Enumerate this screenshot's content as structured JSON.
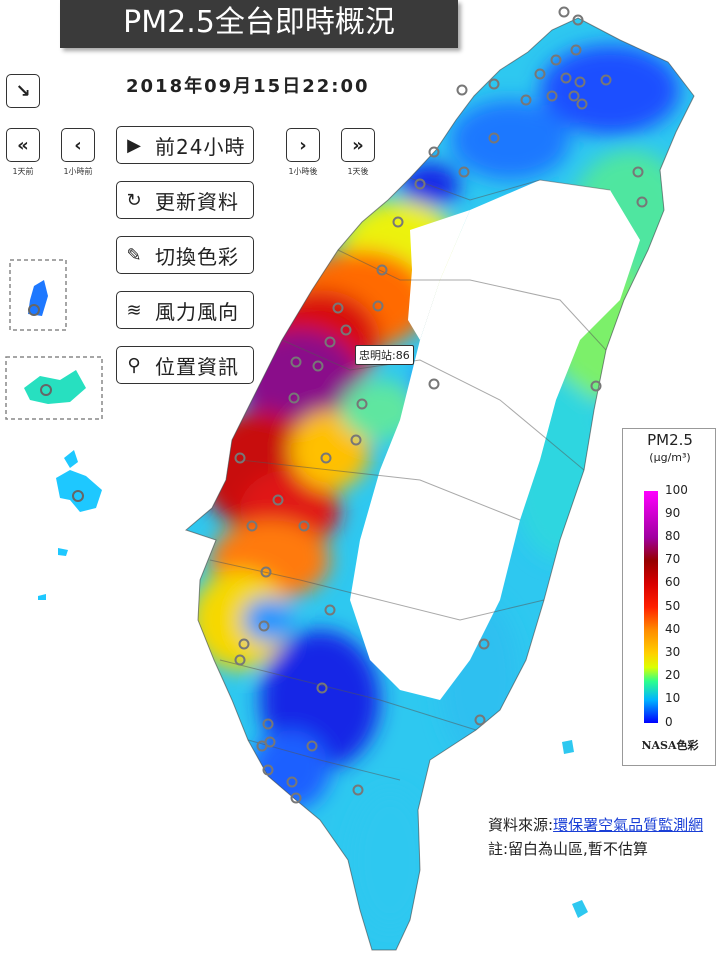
{
  "title": "PM2.5全台即時概況",
  "datetime": "2018年09月15日22:00",
  "controls": {
    "collapse_icon": "arrow-down-right-icon",
    "step_buttons": [
      {
        "icon": "double-chevron-left-icon",
        "glyph": "«",
        "caption": "1天前"
      },
      {
        "icon": "chevron-left-icon",
        "glyph": "‹",
        "caption": "1小時前"
      },
      {
        "icon": "chevron-right-icon",
        "glyph": "›",
        "caption": "1小時後"
      },
      {
        "icon": "double-chevron-right-icon",
        "glyph": "»",
        "caption": "1天後"
      }
    ],
    "menu": [
      {
        "icon": "play-circle-icon",
        "glyph": "▶",
        "label": "前24小時"
      },
      {
        "icon": "refresh-icon",
        "glyph": "↻",
        "label": "更新資料"
      },
      {
        "icon": "paint-brush-icon",
        "glyph": "✎",
        "label": "切換色彩"
      },
      {
        "icon": "wind-icon",
        "glyph": "≋",
        "label": "風力風向"
      },
      {
        "icon": "map-pin-icon",
        "glyph": "⚲",
        "label": "位置資訊"
      }
    ]
  },
  "highlighted_station": "忠明站:86",
  "legend": {
    "title": "PM2.5",
    "unit": "(μg/m³)",
    "ticks": [
      "100",
      "90",
      "80",
      "70",
      "60",
      "50",
      "40",
      "30",
      "20",
      "10",
      "0"
    ],
    "footer": "NASA色彩",
    "palette": {
      "low": "#0000ff",
      "mid": "#ffd000",
      "high": "#d80000",
      "max": "#ff00ff"
    }
  },
  "source": {
    "prefix": "資料來源:",
    "link": "環保署空氣品質監測網"
  },
  "note": "註:留白為山區,暫不估算"
}
